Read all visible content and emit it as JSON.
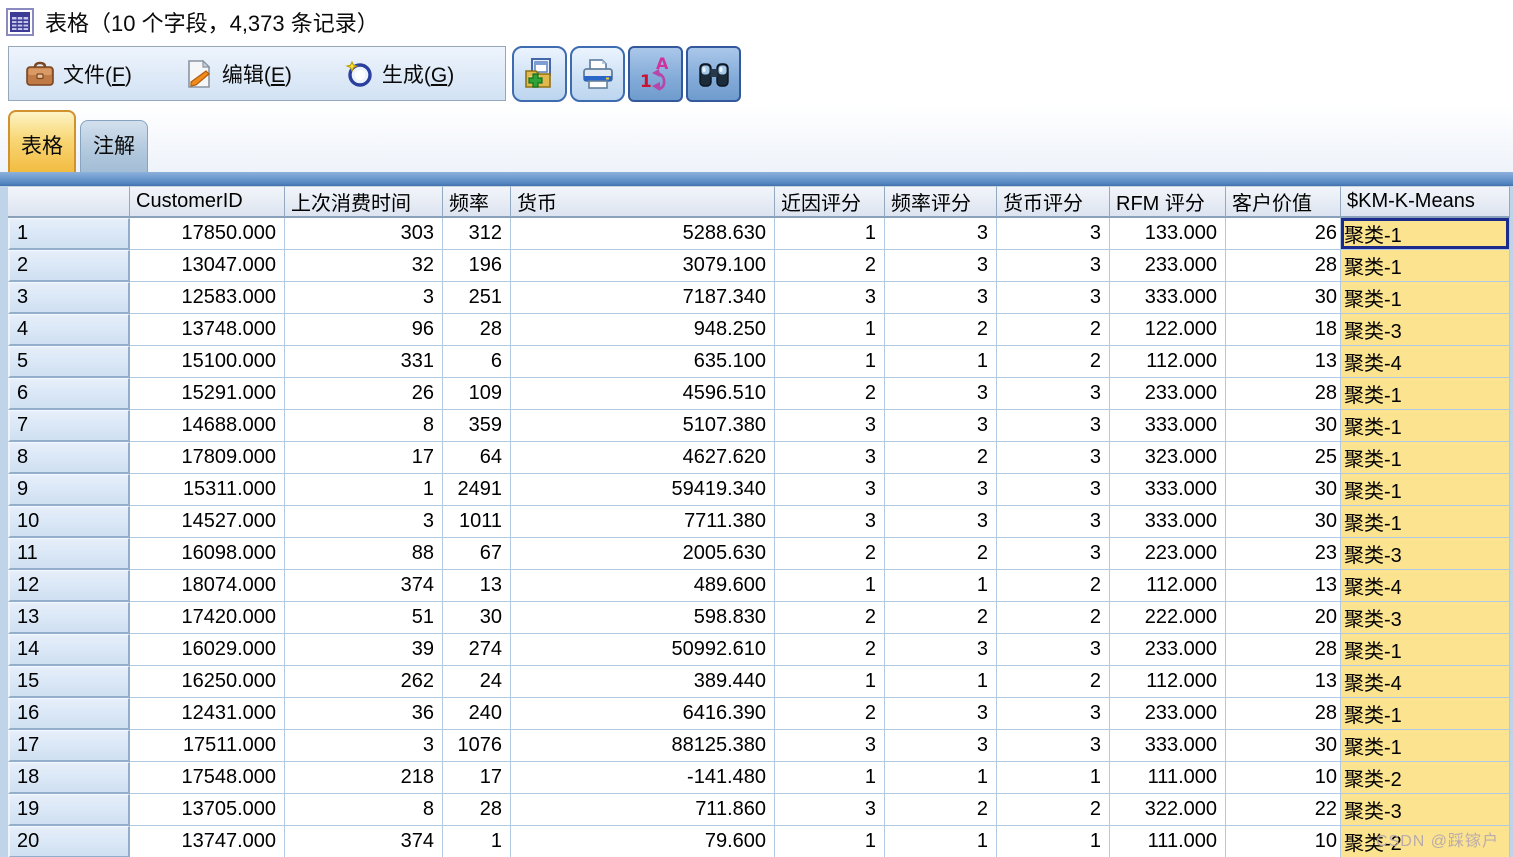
{
  "window": {
    "title": "表格（10 个字段，4,373 条记录）"
  },
  "menu": {
    "items": [
      {
        "pre": "文件(",
        "key": "F",
        "post": ")",
        "icon": "briefcase-icon"
      },
      {
        "pre": "编辑(",
        "key": "E",
        "post": ")",
        "icon": "edit-icon"
      },
      {
        "pre": "生成(",
        "key": "G",
        "post": ")",
        "icon": "generate-icon"
      }
    ]
  },
  "toolbar": {
    "buttons": [
      {
        "icon": "export-table-icon"
      },
      {
        "icon": "print-icon"
      },
      {
        "icon": "sort-fields-icon"
      },
      {
        "icon": "find-icon"
      }
    ]
  },
  "tabs": [
    {
      "label": "表格",
      "active": true
    },
    {
      "label": "注解",
      "active": false
    }
  ],
  "colors": {
    "cluster_cell": "#fbe38f",
    "selected_border": "#1b2b8c",
    "active_tab": "#f2bc42",
    "band_blue": "#5183bf"
  },
  "table": {
    "columns": [
      "",
      "CustomerID",
      "上次消费时间",
      "频率",
      "货币",
      "近因评分",
      "频率评分",
      "货币评分",
      "RFM 评分",
      "客户价值",
      "$KM-K-Means"
    ],
    "selected_cell": {
      "row": 1,
      "column": "$KM-K-Means"
    },
    "rows": [
      [
        "1",
        "17850.000",
        "303",
        "312",
        "5288.630",
        "1",
        "3",
        "3",
        "133.000",
        "26",
        "聚类-1"
      ],
      [
        "2",
        "13047.000",
        "32",
        "196",
        "3079.100",
        "2",
        "3",
        "3",
        "233.000",
        "28",
        "聚类-1"
      ],
      [
        "3",
        "12583.000",
        "3",
        "251",
        "7187.340",
        "3",
        "3",
        "3",
        "333.000",
        "30",
        "聚类-1"
      ],
      [
        "4",
        "13748.000",
        "96",
        "28",
        "948.250",
        "1",
        "2",
        "2",
        "122.000",
        "18",
        "聚类-3"
      ],
      [
        "5",
        "15100.000",
        "331",
        "6",
        "635.100",
        "1",
        "1",
        "2",
        "112.000",
        "13",
        "聚类-4"
      ],
      [
        "6",
        "15291.000",
        "26",
        "109",
        "4596.510",
        "2",
        "3",
        "3",
        "233.000",
        "28",
        "聚类-1"
      ],
      [
        "7",
        "14688.000",
        "8",
        "359",
        "5107.380",
        "3",
        "3",
        "3",
        "333.000",
        "30",
        "聚类-1"
      ],
      [
        "8",
        "17809.000",
        "17",
        "64",
        "4627.620",
        "3",
        "2",
        "3",
        "323.000",
        "25",
        "聚类-1"
      ],
      [
        "9",
        "15311.000",
        "1",
        "2491",
        "59419.340",
        "3",
        "3",
        "3",
        "333.000",
        "30",
        "聚类-1"
      ],
      [
        "10",
        "14527.000",
        "3",
        "1011",
        "7711.380",
        "3",
        "3",
        "3",
        "333.000",
        "30",
        "聚类-1"
      ],
      [
        "11",
        "16098.000",
        "88",
        "67",
        "2005.630",
        "2",
        "2",
        "3",
        "223.000",
        "23",
        "聚类-3"
      ],
      [
        "12",
        "18074.000",
        "374",
        "13",
        "489.600",
        "1",
        "1",
        "2",
        "112.000",
        "13",
        "聚类-4"
      ],
      [
        "13",
        "17420.000",
        "51",
        "30",
        "598.830",
        "2",
        "2",
        "2",
        "222.000",
        "20",
        "聚类-3"
      ],
      [
        "14",
        "16029.000",
        "39",
        "274",
        "50992.610",
        "2",
        "3",
        "3",
        "233.000",
        "28",
        "聚类-1"
      ],
      [
        "15",
        "16250.000",
        "262",
        "24",
        "389.440",
        "1",
        "1",
        "2",
        "112.000",
        "13",
        "聚类-4"
      ],
      [
        "16",
        "12431.000",
        "36",
        "240",
        "6416.390",
        "2",
        "3",
        "3",
        "233.000",
        "28",
        "聚类-1"
      ],
      [
        "17",
        "17511.000",
        "3",
        "1076",
        "88125.380",
        "3",
        "3",
        "3",
        "333.000",
        "30",
        "聚类-1"
      ],
      [
        "18",
        "17548.000",
        "218",
        "17",
        "-141.480",
        "1",
        "1",
        "1",
        "111.000",
        "10",
        "聚类-2"
      ],
      [
        "19",
        "13705.000",
        "8",
        "28",
        "711.860",
        "3",
        "2",
        "2",
        "322.000",
        "22",
        "聚类-3"
      ],
      [
        "20",
        "13747.000",
        "374",
        "1",
        "79.600",
        "1",
        "1",
        "1",
        "111.000",
        "10",
        "聚类-2"
      ]
    ]
  },
  "watermark": "CSDN @踩镓户"
}
